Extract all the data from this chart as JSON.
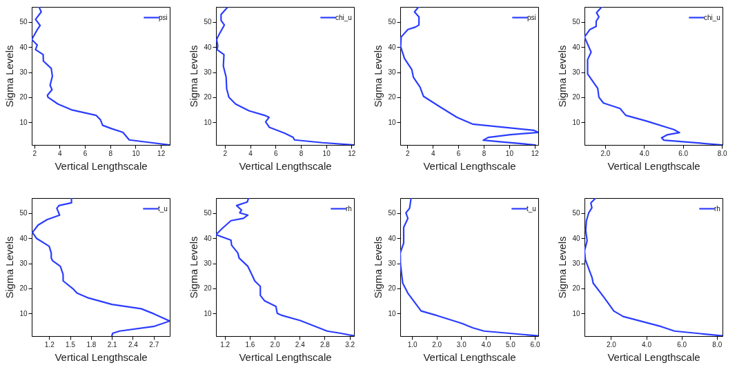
{
  "chart_data": [
    {
      "type": "line",
      "xlabel": "Vertical Lengthscale",
      "ylabel": "Sigma Levels",
      "legend": "top right",
      "xlim": [
        1.8,
        12.7
      ],
      "xticks": [
        2,
        4,
        6,
        8,
        10,
        12
      ],
      "ylim": [
        1,
        56
      ],
      "yticks": [
        10,
        20,
        30,
        40,
        50
      ],
      "series": [
        {
          "name": "psi",
          "color": "#2a3cff",
          "x": [
            2.37,
            2.55,
            2.1,
            2.46,
            2.2,
            1.8,
            2.23,
            2.1,
            2.7,
            2.72,
            3.34,
            3.43,
            3.25,
            3.4,
            3.04,
            3.08,
            3.87,
            4.93,
            6.88,
            7.23,
            7.4,
            8.1,
            9.0,
            9.5,
            12.7
          ],
          "values": [
            56,
            54,
            51,
            48.6,
            46.6,
            43,
            40.8,
            39,
            37,
            34.4,
            31.5,
            28.4,
            24.8,
            23,
            20.8,
            20,
            17.3,
            15,
            12.8,
            11,
            8.8,
            7.5,
            6,
            3,
            1
          ]
        }
      ]
    },
    {
      "type": "line",
      "xlabel": "Vertical Lengthscale",
      "ylabel": "Sigma Levels",
      "legend": "top right",
      "xlim": [
        1.3,
        12.2
      ],
      "xticks": [
        2,
        4,
        6,
        8,
        10,
        12
      ],
      "ylim": [
        1,
        56
      ],
      "yticks": [
        10,
        20,
        30,
        40,
        50
      ],
      "series": [
        {
          "name": "chi_u",
          "color": "#2a3cff",
          "x": [
            2.19,
            1.7,
            1.7,
            1.96,
            1.52,
            1.35,
            1.44,
            1.38,
            1.93,
            1.88,
            2.1,
            2.14,
            2.32,
            2.85,
            3.9,
            5.13,
            5.49,
            5.22,
            5.52,
            6.72,
            7.39,
            7.5,
            9.7,
            12.18
          ],
          "values": [
            55.7,
            53,
            50.6,
            48.8,
            44.8,
            43,
            40.4,
            39,
            37,
            32.4,
            28,
            23.5,
            20,
            17.3,
            14.6,
            12.8,
            12,
            10.2,
            8,
            5.7,
            4,
            3,
            1.9,
            1
          ]
        }
      ]
    },
    {
      "type": "line",
      "xlabel": "Vertical Lengthscale",
      "ylabel": "Sigma Levels",
      "legend": "top right",
      "xlim": [
        1.44,
        12.28
      ],
      "xticks": [
        2,
        4,
        6,
        8,
        10,
        12
      ],
      "ylim": [
        1,
        56
      ],
      "yticks": [
        10,
        20,
        30,
        40,
        50
      ],
      "series": [
        {
          "name": "psi",
          "color": "#2a3cff",
          "x": [
            2.88,
            2.56,
            2.91,
            2.91,
            2.65,
            2.04,
            1.51,
            1.47,
            1.77,
            2.35,
            2.47,
            3.0,
            3.26,
            4.49,
            5.89,
            7.12,
            11.95,
            12.28,
            10.1,
            8.35,
            7.96,
            9.4,
            12.04
          ],
          "values": [
            56,
            54,
            52,
            48.8,
            48,
            47,
            44,
            40.2,
            35.5,
            31,
            28,
            24,
            20.4,
            16.4,
            12,
            9.3,
            6.8,
            6,
            5.1,
            4,
            2.9,
            2.2,
            1
          ]
        }
      ]
    },
    {
      "type": "line",
      "xlabel": "Vertical Lengthscale",
      "ylabel": "Sigma Levels",
      "legend": "top right",
      "xlim": [
        0.94,
        8.03
      ],
      "xticks": [
        {
          "value": 2,
          "label": "2.0"
        },
        {
          "value": 4,
          "label": "4.0"
        },
        {
          "value": 6,
          "label": "6.0"
        },
        {
          "value": 8,
          "label": "8.0"
        }
      ],
      "ylim": [
        1,
        56
      ],
      "yticks": [
        10,
        20,
        30,
        40,
        50
      ],
      "series": [
        {
          "name": "chi_u",
          "color": "#2a3cff",
          "x": [
            1.83,
            1.56,
            1.68,
            1.54,
            1.54,
            1.22,
            0.94,
            1.28,
            1.1,
            1.1,
            1.62,
            1.68,
            1.91,
            2.77,
            3.06,
            4.09,
            5.53,
            5.82,
            5.18,
            4.9,
            5.01,
            8.0
          ],
          "values": [
            56,
            53.7,
            52,
            50.3,
            48.2,
            47,
            44,
            38,
            35,
            29.3,
            23.5,
            20,
            17.7,
            15.5,
            12.8,
            10.6,
            7.1,
            5.9,
            5,
            3.8,
            2.9,
            1
          ]
        }
      ]
    },
    {
      "type": "line",
      "xlabel": "Vertical Lengthscale",
      "ylabel": "Sigma Levels",
      "legend": "top right",
      "xlim": [
        0.95,
        2.93
      ],
      "xticks": [
        1.2,
        1.5,
        1.8,
        2.1,
        2.4,
        2.7
      ],
      "ylim": [
        1,
        56
      ],
      "yticks": [
        10,
        20,
        30,
        40,
        50
      ],
      "series": [
        {
          "name": "t_u",
          "color": "#2a3cff",
          "x": [
            1.52,
            1.52,
            1.34,
            1.31,
            1.35,
            1.17,
            1.04,
            0.96,
            1.02,
            1.2,
            1.23,
            1.23,
            1.25,
            1.36,
            1.4,
            1.4,
            1.54,
            1.6,
            1.75,
            2.1,
            2.52,
            2.7,
            2.93,
            2.71,
            2.21,
            2.11,
            2.1
          ],
          "values": [
            55.9,
            54.1,
            53,
            51.9,
            49.2,
            47.4,
            45.2,
            42.3,
            39.9,
            36.8,
            34.1,
            32.1,
            31,
            28.8,
            25.6,
            23,
            19.9,
            18.1,
            16.3,
            13.6,
            11.9,
            9.9,
            7,
            4.9,
            3,
            2.1,
            1.1
          ]
        }
      ]
    },
    {
      "type": "line",
      "xlabel": "Vertical Lengthscale",
      "ylabel": "Sigma Levels",
      "legend": "top right",
      "xlim": [
        1.06,
        3.27
      ],
      "xticks": [
        1.2,
        1.6,
        {
          "value": 2,
          "label": "2.0"
        },
        2.4,
        2.8,
        3.2
      ],
      "ylim": [
        1,
        56
      ],
      "yticks": [
        10,
        20,
        30,
        40,
        50
      ],
      "series": [
        {
          "name": "rh",
          "color": "#2a3cff",
          "x": [
            1.58,
            1.56,
            1.39,
            1.47,
            1.44,
            1.57,
            1.5,
            1.3,
            1.16,
            1.06,
            1.3,
            1.31,
            1.41,
            1.43,
            1.57,
            1.64,
            1.68,
            1.77,
            1.77,
            1.84,
            2.02,
            2.04,
            2.12,
            2.41,
            2.84,
            3.06,
            3.27
          ],
          "values": [
            55.9,
            54.4,
            53,
            51.2,
            50.1,
            49.2,
            47.9,
            47,
            43.9,
            41.4,
            39.2,
            37.2,
            34.1,
            32.1,
            28.8,
            25.2,
            23,
            20.8,
            17.2,
            15,
            12.8,
            10.1,
            9.2,
            7.2,
            3,
            2.1,
            1.1
          ]
        }
      ]
    },
    {
      "type": "line",
      "xlabel": "Vertical Lengthscale",
      "ylabel": "Sigma Levels",
      "legend": "top right",
      "xlim": [
        0.52,
        6.14
      ],
      "xticks": [
        {
          "value": 1,
          "label": "1.0"
        },
        {
          "value": 2,
          "label": "2.0"
        },
        {
          "value": 3,
          "label": "3.0"
        },
        {
          "value": 4,
          "label": "4.0"
        },
        {
          "value": 5,
          "label": "5.0"
        },
        {
          "value": 6,
          "label": "6.0"
        }
      ],
      "ylim": [
        1,
        56
      ],
      "yticks": [
        10,
        20,
        30,
        40,
        50
      ],
      "series": [
        {
          "name": "t_u",
          "color": "#2a3cff",
          "x": [
            0.96,
            0.9,
            0.75,
            0.83,
            0.66,
            0.66,
            0.52,
            0.53,
            0.62,
            0.83,
            1.37,
            2.01,
            3.02,
            3.47,
            3.93,
            6.14
          ],
          "values": [
            55.9,
            51.9,
            50.1,
            47.9,
            44.3,
            38.1,
            34.1,
            29.6,
            22.1,
            18.1,
            11,
            9.2,
            6.1,
            4.3,
            3,
            1.1
          ]
        }
      ]
    },
    {
      "type": "line",
      "xlabel": "Vertical Lengthscale",
      "ylabel": "Sigma Levels",
      "legend": "top right",
      "xlim": [
        0.5,
        8.32
      ],
      "xticks": [
        {
          "value": 2,
          "label": "2.0"
        },
        {
          "value": 4,
          "label": "4.0"
        },
        {
          "value": 6,
          "label": "6.0"
        },
        {
          "value": 8,
          "label": "8.0"
        }
      ],
      "ylim": [
        1,
        56
      ],
      "yticks": [
        10,
        20,
        30,
        40,
        50
      ],
      "series": [
        {
          "name": "rh",
          "color": "#2a3cff",
          "x": [
            1.12,
            0.86,
            0.92,
            0.74,
            0.61,
            0.57,
            0.65,
            0.5,
            0.55,
            0.93,
            0.99,
            1.62,
            2.16,
            2.69,
            4.84,
            5.6,
            8.32
          ],
          "values": [
            55.9,
            54.1,
            52.1,
            50.1,
            47,
            43,
            39,
            35,
            31.4,
            24.3,
            22.1,
            16.3,
            11,
            8.8,
            4.8,
            3,
            1.1
          ]
        }
      ]
    }
  ]
}
